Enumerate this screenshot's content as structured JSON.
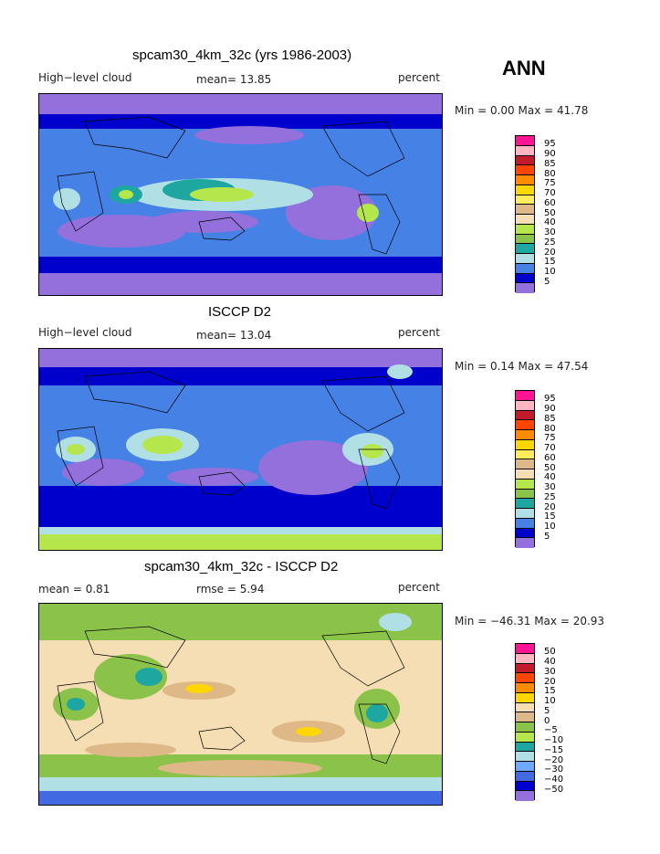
{
  "season": "ANN",
  "panels": [
    {
      "title": "spcam30_4km_32c (yrs 1986-2003)",
      "left": "High−level cloud",
      "center": "mean=   13.85",
      "right": "percent",
      "minmax": "Min =    0.00 Max =   41.78",
      "colorbar_labels": [
        "95",
        "90",
        "85",
        "80",
        "75",
        "70",
        "60",
        "50",
        "40",
        "30",
        "25",
        "20",
        "15",
        "10",
        "5"
      ],
      "colorbar_colors": [
        "#ff1493",
        "#ffb6c1",
        "#c21b2b",
        "#ff4500",
        "#ff8c00",
        "#ffd700",
        "#ffec5c",
        "#deb887",
        "#f5deb3",
        "#b5e64c",
        "#8bc34a",
        "#1ea7a0",
        "#b0e0e6",
        "#4682e6",
        "#0000cd",
        "#9370db"
      ]
    },
    {
      "title": "ISCCP D2",
      "left": "High−level cloud",
      "center": "mean=   13.04",
      "right": "percent",
      "minmax": "Min =    0.14 Max =   47.54",
      "colorbar_labels": [
        "95",
        "90",
        "85",
        "80",
        "75",
        "70",
        "60",
        "50",
        "40",
        "30",
        "25",
        "20",
        "15",
        "10",
        "5"
      ],
      "colorbar_colors": [
        "#ff1493",
        "#ffb6c1",
        "#c21b2b",
        "#ff4500",
        "#ff8c00",
        "#ffd700",
        "#ffec5c",
        "#deb887",
        "#f5deb3",
        "#b5e64c",
        "#8bc34a",
        "#1ea7a0",
        "#b0e0e6",
        "#4682e6",
        "#0000cd",
        "#9370db"
      ]
    },
    {
      "title": "spcam30_4km_32c - ISCCP D2",
      "left": "mean =    0.81",
      "center": "rmse =    5.94",
      "right": "percent",
      "minmax": "Min = −46.31 Max =   20.93",
      "colorbar_labels": [
        "50",
        "40",
        "30",
        "20",
        "15",
        "10",
        "5",
        "0",
        "−5",
        "−10",
        "−15",
        "−20",
        "−30",
        "−40",
        "−50"
      ],
      "colorbar_colors": [
        "#ff1493",
        "#ffb6c1",
        "#c21b2b",
        "#ff4500",
        "#ff8c00",
        "#ffd700",
        "#f5deb3",
        "#deb887",
        "#8bc34a",
        "#b5e64c",
        "#1ea7a0",
        "#b0e0e6",
        "#6fa8ff",
        "#4169e1",
        "#0000cd",
        "#9370db"
      ]
    }
  ],
  "map_colors": {
    "purple": "#9370db",
    "navy": "#0000cd",
    "blue": "#4682e6",
    "cyan": "#b0e0e6",
    "teal": "#1ea7a0",
    "green": "#b5e64c",
    "tan": "#deb887",
    "wheat": "#f5deb3",
    "olive": "#8bc34a",
    "yellow": "#ffd700"
  }
}
